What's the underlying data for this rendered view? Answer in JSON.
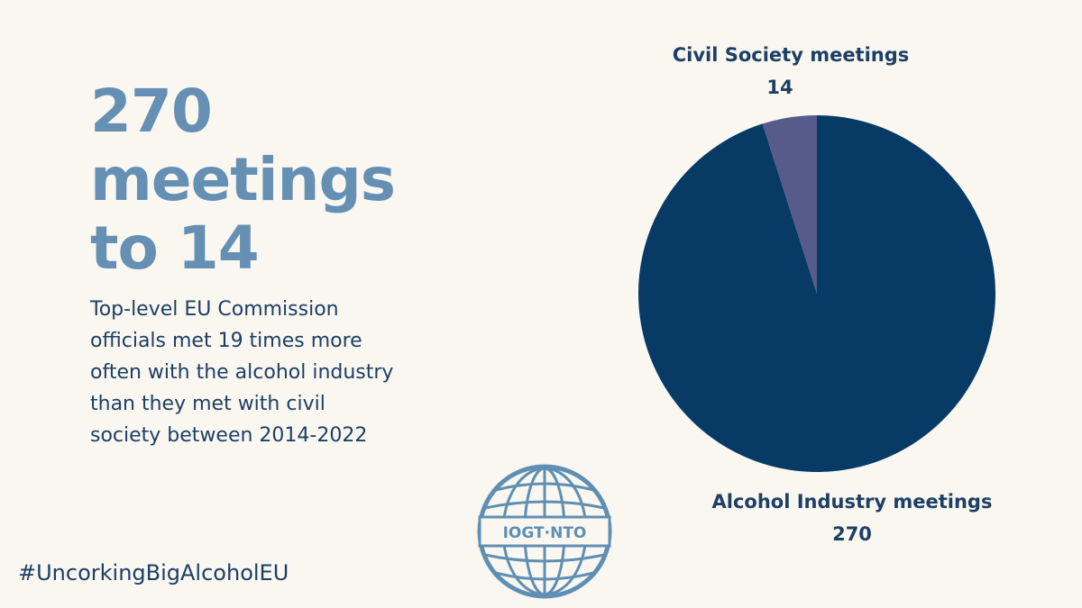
{
  "headline": {
    "line1": "270",
    "line2": "meetings",
    "line3": "to 14"
  },
  "subtitle": {
    "line1": "Top-level EU Commission",
    "line2": "officials met 19 times more",
    "line3": "often with the alcohol industry",
    "line4": "than they met with civil",
    "line5": "society between 2014-2022"
  },
  "hashtag": "#UncorkingBigAlcoholEU",
  "logo": {
    "text": "IOGT·NTO",
    "icon": "globe-icon",
    "color": "#5f8fb3"
  },
  "colors": {
    "background": "#f9f7f0",
    "headline": "#6590b4",
    "body_text": "#1d3f66"
  },
  "chart_data": {
    "type": "pie",
    "slices": [
      {
        "label": "Alcohol Industry meetings",
        "value": 270,
        "value_label": "270",
        "color": "#073b66"
      },
      {
        "label": "Civil Society meetings",
        "value": 14,
        "value_label": "14",
        "color": "#565b8c"
      }
    ],
    "start_angle": "12 o'clock",
    "direction": "clockwise",
    "legend": "none"
  }
}
